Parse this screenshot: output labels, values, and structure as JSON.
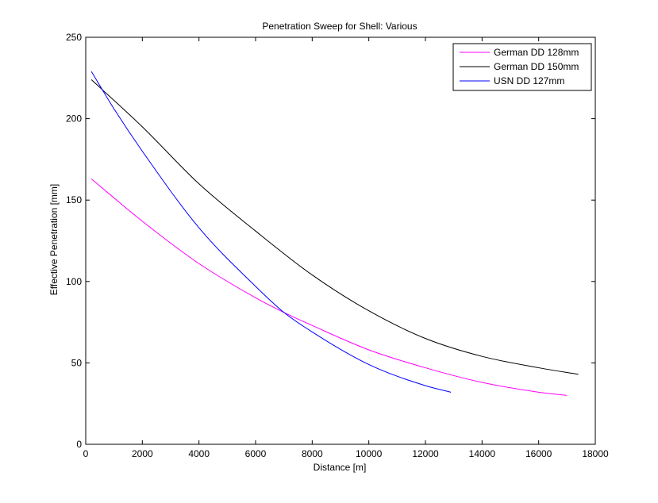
{
  "chart_data": {
    "type": "line",
    "title": "Penetration Sweep for Shell: Various",
    "xlabel": "Distance [m]",
    "ylabel": "Effective Penetration [mm]",
    "xlim": [
      0,
      18000
    ],
    "ylim": [
      0,
      250
    ],
    "xticks": [
      0,
      2000,
      4000,
      6000,
      8000,
      10000,
      12000,
      14000,
      16000,
      18000
    ],
    "yticks": [
      0,
      50,
      100,
      150,
      200,
      250
    ],
    "legend_position": "top-right",
    "grid": false,
    "series": [
      {
        "name": "German DD 128mm",
        "color": "#ff00ff",
        "x": [
          200,
          2000,
          4000,
          6000,
          7000,
          8000,
          10000,
          12000,
          14000,
          16000,
          17000
        ],
        "y": [
          163,
          137,
          111,
          90,
          81,
          73,
          58,
          47,
          38,
          32,
          30
        ]
      },
      {
        "name": "German DD 150mm",
        "color": "#000000",
        "x": [
          200,
          2000,
          4000,
          6000,
          8000,
          10000,
          12000,
          14000,
          16000,
          17400
        ],
        "y": [
          224,
          195,
          160,
          131,
          104,
          82,
          65,
          54,
          47,
          43
        ]
      },
      {
        "name": "USN DD 127mm",
        "color": "#0000ff",
        "x": [
          200,
          1000,
          2000,
          4000,
          6000,
          7000,
          8000,
          10000,
          12000,
          12900
        ],
        "y": [
          229,
          206,
          180,
          133,
          97,
          81,
          69,
          49,
          36,
          32
        ]
      }
    ]
  }
}
